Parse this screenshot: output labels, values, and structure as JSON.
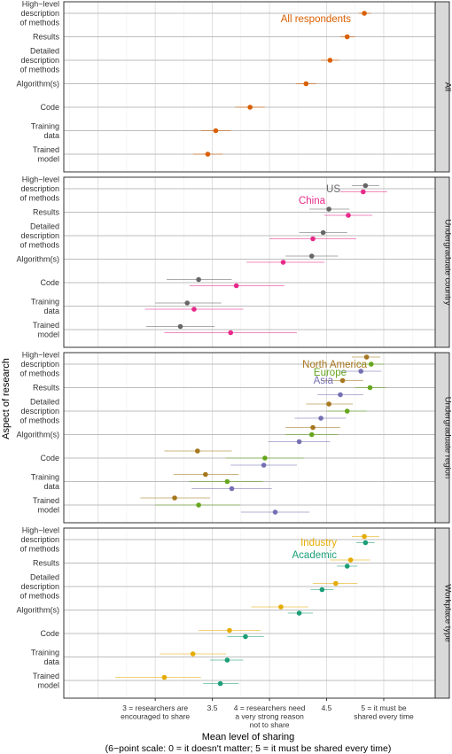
{
  "chart_data": {
    "type": "scatter",
    "subtype": "dot-and-whisker (point estimates with horizontal interval bars), faceted by row",
    "ylabel": "Aspect of research",
    "xlabel": "Mean level of sharing",
    "xlabel_sub": "(6−point scale: 0 = it doesn't matter; 5 = it must be shared every time)",
    "xlim": [
      2.2,
      5.45
    ],
    "grid": true,
    "x_ticks": [
      {
        "value": 3,
        "lines": [
          "3 = researchers are",
          "encouraged to share"
        ]
      },
      {
        "value": 3.5,
        "lines": [
          "3.5"
        ]
      },
      {
        "value": 4,
        "lines": [
          "4 = researchers need",
          "a very strong reason",
          "not to share"
        ]
      },
      {
        "value": 4.5,
        "lines": [
          "4.5"
        ]
      },
      {
        "value": 5,
        "lines": [
          "5 = it must be",
          "shared every time"
        ]
      }
    ],
    "categories": [
      [
        "High−level",
        "description",
        "of methods"
      ],
      [
        "Results"
      ],
      [
        "Detailed",
        "description",
        "of methods"
      ],
      [
        "Algorithm(s)"
      ],
      [
        "Code"
      ],
      [
        "Training",
        "data"
      ],
      [
        "Trained",
        "model"
      ]
    ],
    "colors": {
      "all": "#d95f02",
      "us": "#666666",
      "china": "#e7298a",
      "north_america": "#a6761d",
      "europe": "#66a61e",
      "asia": "#7570b3",
      "industry": "#e6ab02",
      "academic": "#1b9e77"
    },
    "facets": [
      {
        "strip": "All",
        "series": [
          {
            "name": "All respondents",
            "color": "#d95f02",
            "values": [
              4.83,
              4.68,
              4.53,
              4.32,
              3.83,
              3.53,
              3.46
            ],
            "lo": [
              4.78,
              4.62,
              4.45,
              4.23,
              3.7,
              3.4,
              3.33
            ],
            "hi": [
              4.89,
              4.75,
              4.61,
              4.41,
              3.96,
              3.66,
              3.59
            ]
          }
        ]
      },
      {
        "strip": "Undergraduate country",
        "series": [
          {
            "name": "US",
            "color": "#666666",
            "values": [
              4.84,
              4.52,
              4.47,
              4.37,
              3.38,
              3.28,
              3.22
            ],
            "lo": [
              4.72,
              4.35,
              4.26,
              4.14,
              3.1,
              3.0,
              2.92
            ],
            "hi": [
              4.96,
              4.7,
              4.68,
              4.6,
              3.67,
              3.58,
              3.52
            ]
          },
          {
            "name": "China",
            "color": "#e7298a",
            "values": [
              4.82,
              4.69,
              4.38,
              4.12,
              3.71,
              3.34,
              3.66
            ],
            "lo": [
              4.62,
              4.48,
              4.0,
              3.8,
              3.3,
              2.91,
              3.08
            ],
            "hi": [
              5.03,
              4.9,
              4.76,
              4.48,
              4.13,
              3.77,
              4.24
            ]
          }
        ]
      },
      {
        "strip": "Undergraduate region",
        "series": [
          {
            "name": "North America",
            "color": "#a6761d",
            "values": [
              4.85,
              4.64,
              4.52,
              4.38,
              3.37,
              3.44,
              3.17
            ],
            "lo": [
              4.72,
              4.45,
              4.32,
              4.14,
              3.08,
              3.16,
              2.87
            ],
            "hi": [
              4.97,
              4.82,
              4.73,
              4.62,
              3.67,
              3.73,
              3.48
            ]
          },
          {
            "name": "Europe",
            "color": "#66a61e",
            "values": [
              4.89,
              4.88,
              4.68,
              4.37,
              3.96,
              3.63,
              3.38
            ],
            "lo": [
              4.77,
              4.75,
              4.5,
              4.14,
              3.62,
              3.3,
              3.0
            ],
            "hi": [
              5.0,
              5.02,
              4.85,
              4.6,
              4.3,
              3.94,
              3.74
            ]
          },
          {
            "name": "Asia",
            "color": "#7570b3",
            "values": [
              4.8,
              4.62,
              4.45,
              4.26,
              3.95,
              3.67,
              4.05
            ],
            "lo": [
              4.62,
              4.42,
              4.22,
              3.99,
              3.66,
              3.32,
              3.75
            ],
            "hi": [
              4.98,
              4.82,
              4.67,
              4.53,
              4.24,
              4.02,
              4.35
            ]
          }
        ]
      },
      {
        "strip": "Workplace type",
        "series": [
          {
            "name": "Industry",
            "color": "#e6ab02",
            "values": [
              4.83,
              4.71,
              4.58,
              4.1,
              3.65,
              3.33,
              3.08
            ],
            "lo": [
              4.72,
              4.53,
              4.38,
              3.84,
              3.38,
              3.04,
              2.65
            ],
            "hi": [
              4.96,
              4.88,
              4.77,
              4.34,
              3.92,
              3.62,
              3.4
            ]
          },
          {
            "name": "Academic",
            "color": "#1b9e77",
            "values": [
              4.84,
              4.68,
              4.46,
              4.26,
              3.79,
              3.63,
              3.57
            ],
            "lo": [
              4.76,
              4.59,
              4.36,
              4.16,
              3.63,
              3.48,
              3.42
            ],
            "hi": [
              4.92,
              4.77,
              4.56,
              4.38,
              3.95,
              3.77,
              3.73
            ]
          }
        ]
      }
    ]
  }
}
